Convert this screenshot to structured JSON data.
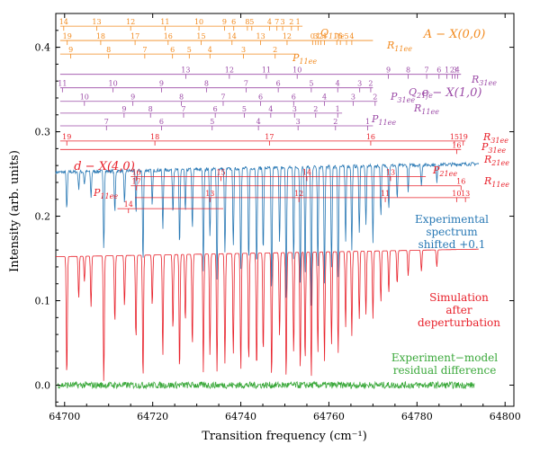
{
  "chart_data": {
    "type": "line",
    "title": "",
    "xlabel": "Transition frequency (cm⁻¹)",
    "ylabel": "Intensity (arb. units)",
    "xlim": [
      64698,
      64802
    ],
    "ylim": [
      -0.025,
      0.44
    ],
    "xticks": [
      64700,
      64720,
      64740,
      64760,
      64780,
      64800
    ],
    "yticks": [
      0.0,
      0.1,
      0.2,
      0.3,
      0.4
    ],
    "ytick_labels": [
      "0.0",
      "0.1",
      "0.2",
      "0.3",
      "0.4"
    ],
    "series": [
      {
        "name": "Experimental spectrum shifted +0.1",
        "label_lines": [
          "Experimental",
          "spectrum",
          "shifted +0.1"
        ],
        "color": "#2878b4",
        "baseline": 0.252,
        "baseline_end": 0.262,
        "noise": 0.002,
        "x_start": 64698,
        "x_end": 64794,
        "dips": [
          [
            64700.5,
            0.045
          ],
          [
            64703.2,
            0.02
          ],
          [
            64704.5,
            0.015
          ],
          [
            64706.0,
            0.03
          ],
          [
            64708.9,
            0.09
          ],
          [
            64711.4,
            0.05
          ],
          [
            64713.6,
            0.04
          ],
          [
            64716.2,
            0.05
          ],
          [
            64717.8,
            0.11
          ],
          [
            64719.9,
            0.04
          ],
          [
            64722.3,
            0.07
          ],
          [
            64724.6,
            0.05
          ],
          [
            64726.1,
            0.09
          ],
          [
            64727.4,
            0.05
          ],
          [
            64729.0,
            0.07
          ],
          [
            64731.5,
            0.12
          ],
          [
            64733.0,
            0.08
          ],
          [
            64734.6,
            0.13
          ],
          [
            64736.4,
            0.1
          ],
          [
            64738.3,
            0.09
          ],
          [
            64740.0,
            0.12
          ],
          [
            64741.8,
            0.11
          ],
          [
            64743.6,
            0.12
          ],
          [
            64745.1,
            0.1
          ],
          [
            64747.0,
            0.15
          ],
          [
            64748.8,
            0.09
          ],
          [
            64750.3,
            0.16
          ],
          [
            64752.0,
            0.11
          ],
          [
            64753.5,
            0.14
          ],
          [
            64754.6,
            0.13
          ],
          [
            64756.0,
            0.17
          ],
          [
            64757.5,
            0.12
          ],
          [
            64759.0,
            0.14
          ],
          [
            64760.6,
            0.12
          ],
          [
            64762.1,
            0.13
          ],
          [
            64763.8,
            0.09
          ],
          [
            64765.2,
            0.1
          ],
          [
            64766.9,
            0.08
          ],
          [
            64768.4,
            0.07
          ],
          [
            64770.0,
            0.09
          ],
          [
            64771.8,
            0.06
          ],
          [
            64773.6,
            0.05
          ],
          [
            64775.5,
            0.04
          ],
          [
            64778.0,
            0.03
          ],
          [
            64781.0,
            0.025
          ],
          [
            64784.5,
            0.02
          ]
        ]
      },
      {
        "name": "Simulation after deperturbation",
        "label_lines": [
          "Simulation",
          "after",
          "deperturbation"
        ],
        "color": "#e8202a",
        "baseline": 0.152,
        "baseline_end": 0.161,
        "noise": 0.0,
        "x_start": 64698,
        "x_end": 64794,
        "dips": [
          [
            64700.5,
            0.145
          ],
          [
            64703.2,
            0.05
          ],
          [
            64704.5,
            0.03
          ],
          [
            64706.0,
            0.06
          ],
          [
            64708.9,
            0.15
          ],
          [
            64711.4,
            0.08
          ],
          [
            64713.6,
            0.06
          ],
          [
            64716.2,
            0.1
          ],
          [
            64717.8,
            0.148
          ],
          [
            64719.9,
            0.06
          ],
          [
            64722.3,
            0.12
          ],
          [
            64724.6,
            0.09
          ],
          [
            64726.1,
            0.14
          ],
          [
            64727.4,
            0.08
          ],
          [
            64729.0,
            0.11
          ],
          [
            64731.5,
            0.14
          ],
          [
            64733.0,
            0.12
          ],
          [
            64734.6,
            0.14
          ],
          [
            64736.4,
            0.13
          ],
          [
            64738.3,
            0.12
          ],
          [
            64740.0,
            0.14
          ],
          [
            64741.8,
            0.13
          ],
          [
            64743.6,
            0.14
          ],
          [
            64745.1,
            0.12
          ],
          [
            64747.0,
            0.15
          ],
          [
            64748.8,
            0.1
          ],
          [
            64750.3,
            0.15
          ],
          [
            64752.0,
            0.12
          ],
          [
            64753.5,
            0.14
          ],
          [
            64754.6,
            0.13
          ],
          [
            64756.0,
            0.15
          ],
          [
            64757.5,
            0.12
          ],
          [
            64759.0,
            0.13
          ],
          [
            64760.6,
            0.11
          ],
          [
            64762.1,
            0.12
          ],
          [
            64763.8,
            0.09
          ],
          [
            64765.2,
            0.1
          ],
          [
            64766.9,
            0.08
          ],
          [
            64768.4,
            0.075
          ],
          [
            64770.0,
            0.08
          ],
          [
            64771.8,
            0.06
          ],
          [
            64773.6,
            0.05
          ],
          [
            64775.5,
            0.04
          ],
          [
            64778.0,
            0.03
          ],
          [
            64781.0,
            0.025
          ],
          [
            64784.5,
            0.02
          ]
        ]
      },
      {
        "name": "Experiment−model residual difference",
        "label_lines": [
          "Experiment−model",
          "residual difference"
        ],
        "color": "#3aa83a",
        "baseline": 0.0,
        "baseline_end": 0.0,
        "noise": 0.004,
        "x_start": 64698,
        "x_end": 64793,
        "dips": []
      }
    ],
    "band_labels": [
      {
        "text": "A − X(0,0)",
        "color": "#f28a1e"
      },
      {
        "text": "e − X(1,0)",
        "color": "#9b4aa6"
      },
      {
        "text": "d − X(4,0)",
        "color": "#e8202a"
      }
    ],
    "branches": [
      {
        "name": "Q11fe",
        "color": "#f28a1e",
        "y": 0.425,
        "x_start": 64699,
        "x_end": 64754,
        "ticks": [
          [
            64699.8,
            "14"
          ],
          [
            64707.3,
            "13"
          ],
          [
            64715.0,
            "12"
          ],
          [
            64722.8,
            "11"
          ],
          [
            64730.5,
            "10"
          ],
          [
            64736.3,
            "9"
          ],
          [
            64738.4,
            "6"
          ],
          [
            64741.5,
            "8"
          ],
          [
            64742.5,
            "5"
          ],
          [
            64746.5,
            "4"
          ],
          [
            64748.2,
            "7"
          ],
          [
            64749.5,
            "3"
          ],
          [
            64751.5,
            "2"
          ],
          [
            64753.0,
            "1"
          ]
        ]
      },
      {
        "name": "R11ee",
        "color": "#f28a1e",
        "y": 0.408,
        "x_start": 64699,
        "x_end": 64770,
        "ticks": [
          [
            64700.6,
            "19"
          ],
          [
            64708.2,
            "18"
          ],
          [
            64716.0,
            "17"
          ],
          [
            64723.5,
            "16"
          ],
          [
            64731.0,
            "15"
          ],
          [
            64738.0,
            "14"
          ],
          [
            64744.5,
            "13"
          ],
          [
            64750.5,
            "12"
          ],
          [
            64756.3,
            "0"
          ],
          [
            64757.0,
            "3"
          ],
          [
            64757.6,
            "1"
          ],
          [
            64758.2,
            "2"
          ],
          [
            64759.0,
            "4"
          ],
          [
            64761.8,
            "7"
          ],
          [
            64762.6,
            "6"
          ],
          [
            64764.0,
            "5"
          ],
          [
            64765.2,
            "4"
          ]
        ]
      },
      {
        "name": "P11ee",
        "color": "#f28a1e",
        "y": 0.392,
        "x_start": 64699,
        "x_end": 64753,
        "ticks": [
          [
            64701.4,
            "9"
          ],
          [
            64710.0,
            "8"
          ],
          [
            64718.2,
            "7"
          ],
          [
            64724.5,
            "6"
          ],
          [
            64728.3,
            "5"
          ],
          [
            64733.0,
            "4"
          ],
          [
            64740.6,
            "3"
          ],
          [
            64747.8,
            "2"
          ]
        ]
      },
      {
        "name": "R31ee",
        "color": "#9b4aa6",
        "y": 0.368,
        "x_start": 64699,
        "x_end": 64790,
        "ticks": [
          [
            64727.5,
            "13"
          ],
          [
            64737.4,
            "12"
          ],
          [
            64745.8,
            "11"
          ],
          [
            64752.8,
            "10"
          ],
          [
            64773.5,
            "9"
          ],
          [
            64778.0,
            "8"
          ],
          [
            64782.2,
            "7"
          ],
          [
            64785.0,
            "6"
          ],
          [
            64786.8,
            "1"
          ],
          [
            64788.0,
            "2"
          ],
          [
            64788.6,
            "3"
          ],
          [
            64789.2,
            "4"
          ]
        ]
      },
      {
        "name": "Q21fe",
        "color": "#9b4aa6",
        "y": 0.352,
        "x_start": 64699,
        "x_end": 64770,
        "ticks": [
          [
            64699.5,
            "11"
          ],
          [
            64711.0,
            "10"
          ],
          [
            64722.0,
            "9"
          ],
          [
            64732.2,
            "8"
          ],
          [
            64741.2,
            "7"
          ],
          [
            64748.5,
            "6"
          ],
          [
            64756.0,
            "5"
          ],
          [
            64762.0,
            "4"
          ],
          [
            64767.0,
            "3"
          ],
          [
            64769.5,
            "2"
          ]
        ]
      },
      {
        "name": "P31ee",
        "color": "#9b4aa6",
        "y": 0.336,
        "x_start": 64699,
        "x_end": 64771,
        "ticks": [
          [
            64704.5,
            "10"
          ],
          [
            64715.5,
            "9"
          ],
          [
            64726.5,
            "8"
          ],
          [
            64736.0,
            "7"
          ],
          [
            64744.5,
            "6"
          ],
          [
            64752.0,
            "6"
          ],
          [
            64759.0,
            "4"
          ],
          [
            64765.5,
            "3"
          ],
          [
            64770.5,
            "2"
          ]
        ]
      },
      {
        "name": "R11ee",
        "color": "#9b4aa6",
        "y": 0.322,
        "x_start": 64699,
        "x_end": 64763,
        "ticks": [
          [
            64713.5,
            "9"
          ],
          [
            64719.5,
            "8"
          ],
          [
            64727.0,
            "7"
          ],
          [
            64734.2,
            "6"
          ],
          [
            64740.8,
            "5"
          ],
          [
            64746.8,
            "4"
          ],
          [
            64752.2,
            "3"
          ],
          [
            64757.0,
            "2"
          ],
          [
            64762.0,
            "1"
          ]
        ]
      },
      {
        "name": "P11ee",
        "color": "#9b4aa6",
        "y": 0.307,
        "x_start": 64699,
        "x_end": 64770,
        "ticks": [
          [
            64709.5,
            "7"
          ],
          [
            64722.0,
            "6"
          ],
          [
            64733.5,
            "5"
          ],
          [
            64744.0,
            "4"
          ],
          [
            64753.0,
            "3"
          ],
          [
            64761.5,
            "2"
          ],
          [
            64768.8,
            "1"
          ]
        ]
      },
      {
        "name": "R31ee",
        "color": "#e8202a",
        "y": 0.289,
        "x_start": 64699,
        "x_end": 64791,
        "ticks": [
          [
            64700.5,
            "19"
          ],
          [
            64720.5,
            "18"
          ],
          [
            64746.5,
            "17"
          ],
          [
            64769.5,
            "16"
          ],
          [
            64788.5,
            "15"
          ],
          [
            64790.5,
            "19"
          ]
        ]
      },
      {
        "name": "P31ee",
        "color": "#e8202a",
        "y": 0.279,
        "x_start": 64699,
        "x_end": 64790,
        "ticks": [
          [
            64789.0,
            "16"
          ]
        ]
      },
      {
        "name": "P21ee",
        "color": "#e8202a",
        "y": 0.247,
        "x_start": 64715,
        "x_end": 64782,
        "ticks": [
          [
            64716.3,
            "16"
          ],
          [
            64735.5,
            "15"
          ],
          [
            64755.0,
            "14"
          ],
          [
            64774.0,
            "13"
          ]
        ]
      },
      {
        "name": "R21ee",
        "color": "#e8202a",
        "y": 0.236,
        "x_start": 64715,
        "x_end": 64790,
        "ticks": [
          [
            64716.3,
            "17"
          ],
          [
            64790.0,
            "16"
          ]
        ]
      },
      {
        "name": "R11ee",
        "color": "#e8202a",
        "y": 0.222,
        "x_start": 64716,
        "x_end": 64792,
        "ticks": [
          [
            64733.0,
            "13"
          ],
          [
            64753.2,
            "12"
          ],
          [
            64772.8,
            "11"
          ],
          [
            64789.0,
            "10"
          ],
          [
            64791.0,
            "13"
          ]
        ]
      },
      {
        "name": "P11ee",
        "color": "#e8202a",
        "y": 0.209,
        "x_start": 64712,
        "x_end": 64736,
        "ticks": [
          [
            64714.5,
            "14"
          ]
        ]
      }
    ]
  }
}
